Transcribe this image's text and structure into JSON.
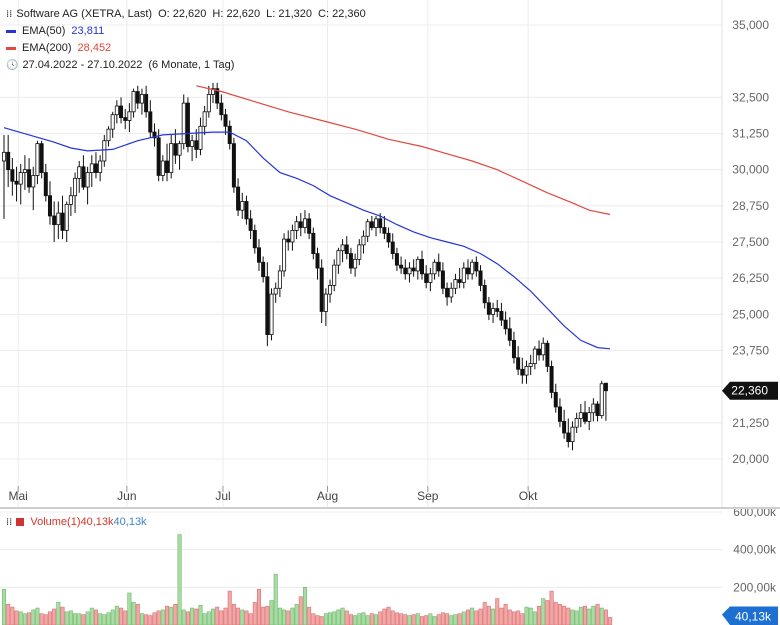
{
  "header": {
    "instrument": "Software AG (XETRA, Last)",
    "o_label": "O:",
    "open": "22,620",
    "h_label": "H:",
    "high": "22,620",
    "l_label": "L:",
    "low": "21,320",
    "c_label": "C:",
    "close": "22,360"
  },
  "legend": {
    "ema50_label": "EMA(50)",
    "ema50_value": "23,811",
    "ema50_color": "#2435d6",
    "ema200_label": "EMA(200)",
    "ema200_value": "28,452",
    "ema200_color": "#e2483d",
    "range_text": "27.04.2022 - 27.10.2022",
    "interval_text": "(6 Monate, 1 Tag)"
  },
  "volume_legend": {
    "label": "Volume(1)",
    "value1": "40,13k",
    "value2": "40,13k"
  },
  "chart_data": [
    {
      "type": "candlestick",
      "title": "Software AG (XETRA, Last)",
      "x_labels": [
        "Mai",
        "Jun",
        "Jul",
        "Aug",
        "Sep",
        "Okt"
      ],
      "y_ticks": [
        "35,000",
        "32,500",
        "31,250",
        "30,000",
        "28,750",
        "27,500",
        "26,250",
        "25,000",
        "23,750",
        "21,250",
        "20,000"
      ],
      "ylim": [
        19.5,
        35.5
      ],
      "current_price_label": "22,360",
      "last_candle": {
        "open": 22.62,
        "high": 22.62,
        "low": 21.32,
        "close": 22.36
      },
      "candles": [
        [
          30.3,
          31.2,
          28.3,
          30.6
        ],
        [
          30.6,
          31.2,
          29.4,
          30.0
        ],
        [
          30.0,
          30.4,
          29.1,
          29.6
        ],
        [
          29.6,
          30.1,
          28.9,
          29.5
        ],
        [
          29.5,
          30.2,
          28.8,
          29.9
        ],
        [
          29.9,
          30.5,
          29.3,
          30.0
        ],
        [
          30.0,
          30.4,
          29.2,
          29.4
        ],
        [
          29.4,
          30.1,
          28.6,
          29.8
        ],
        [
          29.8,
          31.0,
          29.5,
          30.9
        ],
        [
          30.9,
          31.0,
          29.7,
          29.9
        ],
        [
          29.9,
          30.2,
          28.9,
          29.1
        ],
        [
          29.1,
          29.6,
          28.1,
          28.4
        ],
        [
          28.4,
          28.9,
          27.5,
          28.1
        ],
        [
          28.1,
          28.9,
          27.6,
          28.5
        ],
        [
          28.5,
          29.1,
          27.6,
          27.9
        ],
        [
          27.9,
          28.9,
          27.5,
          28.8
        ],
        [
          28.8,
          29.4,
          28.4,
          29.1
        ],
        [
          29.1,
          29.9,
          28.5,
          29.7
        ],
        [
          29.7,
          30.3,
          29.2,
          30.1
        ],
        [
          30.1,
          30.5,
          29.3,
          29.4
        ],
        [
          29.4,
          30.1,
          28.8,
          29.9
        ],
        [
          29.9,
          30.5,
          29.4,
          30.2
        ],
        [
          30.2,
          30.6,
          29.7,
          29.9
        ],
        [
          29.9,
          30.5,
          29.6,
          30.3
        ],
        [
          30.3,
          31.2,
          30.1,
          31.0
        ],
        [
          31.0,
          31.5,
          30.8,
          31.4
        ],
        [
          31.4,
          32.0,
          31.1,
          31.9
        ],
        [
          31.9,
          32.4,
          31.6,
          32.2
        ],
        [
          32.2,
          32.5,
          31.6,
          31.8
        ],
        [
          31.8,
          32.1,
          31.4,
          31.7
        ],
        [
          31.7,
          32.3,
          31.3,
          32.0
        ],
        [
          32.0,
          32.8,
          31.8,
          32.7
        ],
        [
          32.7,
          32.9,
          32.1,
          32.3
        ],
        [
          32.3,
          32.8,
          31.9,
          32.6
        ],
        [
          32.6,
          32.9,
          31.8,
          32.0
        ],
        [
          32.0,
          32.4,
          31.1,
          31.3
        ],
        [
          31.3,
          31.6,
          30.8,
          31.1
        ],
        [
          31.1,
          31.4,
          29.6,
          29.8
        ],
        [
          29.8,
          30.5,
          29.6,
          30.3
        ],
        [
          30.3,
          30.9,
          29.6,
          29.9
        ],
        [
          29.9,
          31.2,
          29.7,
          30.9
        ],
        [
          30.9,
          31.4,
          30.2,
          30.5
        ],
        [
          30.5,
          31.0,
          30.0,
          30.9
        ],
        [
          30.9,
          32.6,
          30.7,
          32.3
        ],
        [
          32.3,
          32.5,
          30.6,
          30.8
        ],
        [
          30.8,
          31.2,
          30.3,
          31.0
        ],
        [
          31.0,
          31.4,
          30.4,
          30.7
        ],
        [
          30.7,
          31.8,
          30.5,
          31.5
        ],
        [
          31.5,
          32.2,
          31.2,
          32.0
        ],
        [
          32.0,
          32.9,
          31.8,
          32.6
        ],
        [
          32.6,
          33.0,
          32.3,
          32.8
        ],
        [
          32.8,
          33.0,
          32.1,
          32.3
        ],
        [
          32.3,
          32.6,
          31.7,
          31.9
        ],
        [
          31.9,
          32.1,
          31.2,
          31.5
        ],
        [
          31.5,
          31.7,
          30.7,
          30.9
        ],
        [
          30.9,
          31.1,
          29.2,
          29.4
        ],
        [
          29.4,
          29.7,
          28.4,
          28.6
        ],
        [
          28.6,
          29.2,
          28.3,
          28.9
        ],
        [
          28.9,
          29.1,
          28.1,
          28.3
        ],
        [
          28.3,
          28.6,
          27.6,
          27.9
        ],
        [
          27.9,
          28.1,
          27.1,
          27.3
        ],
        [
          27.3,
          27.6,
          26.5,
          26.8
        ],
        [
          26.8,
          27.0,
          26.1,
          26.3
        ],
        [
          26.3,
          26.8,
          23.9,
          24.3
        ],
        [
          24.3,
          25.9,
          24.1,
          25.7
        ],
        [
          25.7,
          26.1,
          25.4,
          25.9
        ],
        [
          25.9,
          26.7,
          25.6,
          26.5
        ],
        [
          26.5,
          27.8,
          26.3,
          27.6
        ],
        [
          27.6,
          27.9,
          27.2,
          27.5
        ],
        [
          27.5,
          28.1,
          27.2,
          27.9
        ],
        [
          27.9,
          28.4,
          27.6,
          28.2
        ],
        [
          28.2,
          28.5,
          27.7,
          28.0
        ],
        [
          28.0,
          28.6,
          27.8,
          28.3
        ],
        [
          28.3,
          28.5,
          27.6,
          27.8
        ],
        [
          27.8,
          28.0,
          26.9,
          27.1
        ],
        [
          27.1,
          27.3,
          26.2,
          26.6
        ],
        [
          26.6,
          26.9,
          24.7,
          25.1
        ],
        [
          25.1,
          25.9,
          24.6,
          25.7
        ],
        [
          25.7,
          26.2,
          25.4,
          26.0
        ],
        [
          26.0,
          26.9,
          25.8,
          26.7
        ],
        [
          26.7,
          27.3,
          26.4,
          27.2
        ],
        [
          27.2,
          27.6,
          26.8,
          27.4
        ],
        [
          27.4,
          27.7,
          26.9,
          27.1
        ],
        [
          27.1,
          27.3,
          26.4,
          26.6
        ],
        [
          26.6,
          27.1,
          26.3,
          26.9
        ],
        [
          26.9,
          27.6,
          26.7,
          27.4
        ],
        [
          27.4,
          27.9,
          27.1,
          27.7
        ],
        [
          27.7,
          28.3,
          27.5,
          28.2
        ],
        [
          28.2,
          28.4,
          27.9,
          28.0
        ],
        [
          28.0,
          28.4,
          27.7,
          28.3
        ],
        [
          28.3,
          28.5,
          27.8,
          28.0
        ],
        [
          28.0,
          28.4,
          27.6,
          27.8
        ],
        [
          27.8,
          28.0,
          27.3,
          27.5
        ],
        [
          27.5,
          27.8,
          26.9,
          27.1
        ],
        [
          27.1,
          27.3,
          26.5,
          26.7
        ],
        [
          26.7,
          27.0,
          26.4,
          26.6
        ],
        [
          26.6,
          26.9,
          26.2,
          26.4
        ],
        [
          26.4,
          26.8,
          26.1,
          26.6
        ],
        [
          26.6,
          26.9,
          26.3,
          26.5
        ],
        [
          26.5,
          27.0,
          26.2,
          26.9
        ],
        [
          26.9,
          27.2,
          26.2,
          26.4
        ],
        [
          26.4,
          26.7,
          25.9,
          26.1
        ],
        [
          26.1,
          26.6,
          25.8,
          26.4
        ],
        [
          26.4,
          26.9,
          26.2,
          26.8
        ],
        [
          26.8,
          27.1,
          26.3,
          26.5
        ],
        [
          26.5,
          26.8,
          25.7,
          25.9
        ],
        [
          25.9,
          26.1,
          25.3,
          25.6
        ],
        [
          25.6,
          26.1,
          25.4,
          25.9
        ],
        [
          25.9,
          26.4,
          25.7,
          26.2
        ],
        [
          26.2,
          26.6,
          25.9,
          26.1
        ],
        [
          26.1,
          26.8,
          25.9,
          26.6
        ],
        [
          26.6,
          26.9,
          26.2,
          26.4
        ],
        [
          26.4,
          26.9,
          26.2,
          26.8
        ],
        [
          26.8,
          27.0,
          26.3,
          26.5
        ],
        [
          26.5,
          26.7,
          25.8,
          26.0
        ],
        [
          26.0,
          26.2,
          25.2,
          25.4
        ],
        [
          25.4,
          25.6,
          24.8,
          25.0
        ],
        [
          25.0,
          25.4,
          24.7,
          25.2
        ],
        [
          25.2,
          25.5,
          24.9,
          25.1
        ],
        [
          25.1,
          25.4,
          24.6,
          24.8
        ],
        [
          24.8,
          25.1,
          24.3,
          24.5
        ],
        [
          24.5,
          24.9,
          23.9,
          24.1
        ],
        [
          24.1,
          24.4,
          23.3,
          23.5
        ],
        [
          23.5,
          23.9,
          22.9,
          23.1
        ],
        [
          23.1,
          23.5,
          22.6,
          22.9
        ],
        [
          22.9,
          23.4,
          22.6,
          23.2
        ],
        [
          23.2,
          23.6,
          22.9,
          23.3
        ],
        [
          23.3,
          23.9,
          23.1,
          23.8
        ],
        [
          23.8,
          24.1,
          23.4,
          23.6
        ],
        [
          23.6,
          24.2,
          23.4,
          24.0
        ],
        [
          24.0,
          24.1,
          23.0,
          23.2
        ],
        [
          23.2,
          23.4,
          22.1,
          22.3
        ],
        [
          22.3,
          22.6,
          21.6,
          21.8
        ],
        [
          21.8,
          22.1,
          21.1,
          21.3
        ],
        [
          21.3,
          21.7,
          20.7,
          20.9
        ],
        [
          20.9,
          21.4,
          20.4,
          20.6
        ],
        [
          20.6,
          21.3,
          20.3,
          21.1
        ],
        [
          21.1,
          21.6,
          20.9,
          21.4
        ],
        [
          21.4,
          21.9,
          21.1,
          21.6
        ],
        [
          21.6,
          22.0,
          21.2,
          21.3
        ],
        [
          21.3,
          21.8,
          21.0,
          21.6
        ],
        [
          21.6,
          22.1,
          21.3,
          21.9
        ],
        [
          21.9,
          22.0,
          21.3,
          21.5
        ],
        [
          21.5,
          22.7,
          21.4,
          22.6
        ],
        [
          22.62,
          22.62,
          21.32,
          22.36
        ]
      ],
      "ema50": [
        [
          0,
          31.45
        ],
        [
          6,
          31.2
        ],
        [
          12,
          30.95
        ],
        [
          16,
          30.75
        ],
        [
          20,
          30.65
        ],
        [
          26,
          30.7
        ],
        [
          32,
          31.0
        ],
        [
          38,
          31.2
        ],
        [
          44,
          31.25
        ],
        [
          50,
          31.3
        ],
        [
          54,
          31.3
        ],
        [
          58,
          31.0
        ],
        [
          62,
          30.4
        ],
        [
          66,
          29.9
        ],
        [
          70,
          29.7
        ],
        [
          74,
          29.45
        ],
        [
          78,
          29.1
        ],
        [
          82,
          28.85
        ],
        [
          86,
          28.6
        ],
        [
          90,
          28.4
        ],
        [
          94,
          28.1
        ],
        [
          98,
          27.85
        ],
        [
          102,
          27.65
        ],
        [
          106,
          27.5
        ],
        [
          110,
          27.35
        ],
        [
          114,
          27.1
        ],
        [
          118,
          26.75
        ],
        [
          122,
          26.3
        ],
        [
          126,
          25.8
        ],
        [
          130,
          25.2
        ],
        [
          134,
          24.6
        ],
        [
          138,
          24.1
        ],
        [
          142,
          23.85
        ],
        [
          145,
          23.81
        ]
      ],
      "ema200": [
        [
          46,
          32.9
        ],
        [
          52,
          32.7
        ],
        [
          60,
          32.35
        ],
        [
          68,
          32.0
        ],
        [
          76,
          31.7
        ],
        [
          84,
          31.4
        ],
        [
          92,
          31.05
        ],
        [
          100,
          30.8
        ],
        [
          106,
          30.55
        ],
        [
          112,
          30.3
        ],
        [
          118,
          30.0
        ],
        [
          124,
          29.6
        ],
        [
          130,
          29.2
        ],
        [
          136,
          28.85
        ],
        [
          140,
          28.6
        ],
        [
          145,
          28.45
        ]
      ]
    },
    {
      "type": "bar",
      "title": "Volume(1)",
      "y_ticks": [
        "600,00k",
        "400,00k",
        "200,00k"
      ],
      "ylim": [
        0,
        620
      ],
      "current_value_label": "40,13k",
      "values": [
        190,
        110,
        95,
        75,
        70,
        60,
        65,
        80,
        90,
        60,
        55,
        70,
        85,
        120,
        95,
        70,
        75,
        60,
        60,
        55,
        70,
        90,
        80,
        60,
        55,
        65,
        80,
        100,
        90,
        75,
        170,
        120,
        110,
        60,
        55,
        50,
        65,
        75,
        80,
        100,
        95,
        110,
        480,
        80,
        70,
        90,
        85,
        105,
        60,
        70,
        85,
        95,
        75,
        90,
        180,
        110,
        90,
        80,
        75,
        60,
        120,
        190,
        95,
        100,
        130,
        270,
        90,
        80,
        75,
        90,
        110,
        150,
        200,
        95,
        60,
        50,
        45,
        60,
        65,
        70,
        80,
        90,
        75,
        55,
        50,
        60,
        65,
        50,
        60,
        55,
        70,
        85,
        95,
        75,
        65,
        60,
        55,
        50,
        55,
        60,
        45,
        50,
        60,
        45,
        55,
        65,
        60,
        50,
        55,
        60,
        70,
        80,
        90,
        75,
        85,
        120,
        100,
        85,
        140,
        90,
        110,
        80,
        70,
        75,
        60,
        95,
        90,
        70,
        100,
        140,
        130,
        180,
        120,
        110,
        100,
        90,
        80,
        75,
        95,
        100,
        85,
        100,
        110,
        90,
        80,
        40
      ]
    }
  ]
}
